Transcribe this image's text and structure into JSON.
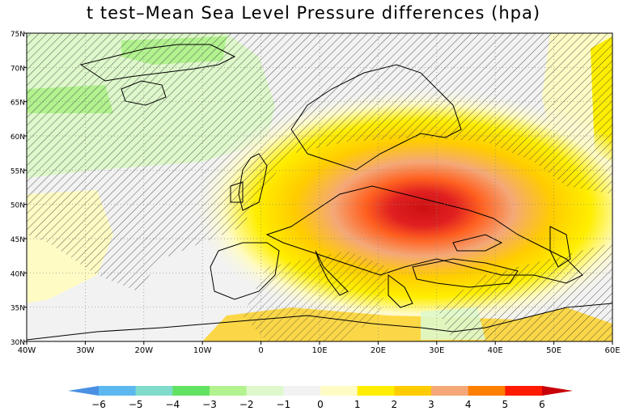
{
  "title": "t test–Mean Sea Level Pressure differences (hpa)",
  "map": {
    "projection": "lat-lon",
    "lon_range": [
      -40,
      60
    ],
    "lat_range": [
      30,
      75
    ],
    "lon_ticks": [
      "40W",
      "30W",
      "20W",
      "10W",
      "0",
      "10E",
      "20E",
      "30E",
      "40E",
      "50E",
      "60E"
    ],
    "lat_ticks": [
      "30N",
      "35N",
      "40N",
      "45N",
      "50N",
      "55N",
      "60N",
      "65N",
      "70N",
      "75N"
    ],
    "gridlines": "dotted",
    "hatching": "diagonal lines mark significance",
    "field": "mean sea level pressure difference",
    "features": [
      {
        "lon": 27,
        "lat": 46,
        "value": 5.5
      },
      {
        "lon": 22,
        "lat": 44,
        "value": 4.5
      },
      {
        "lon": -22,
        "lat": 64,
        "value": -3.2
      },
      {
        "lon": 55,
        "lat": 64,
        "value": 1.5
      }
    ]
  },
  "colorbar": {
    "labels": [
      "−6",
      "−5",
      "−4",
      "−3",
      "−2",
      "−1",
      "0",
      "1",
      "2",
      "3",
      "4",
      "5",
      "6"
    ],
    "colors": [
      "#4a90e2",
      "#5db8f0",
      "#7fdccc",
      "#62e262",
      "#b2f28f",
      "#def8cb",
      "#f2f2f2",
      "#fffbc4",
      "#ffee00",
      "#ffcc00",
      "#f4a878",
      "#ff7f00",
      "#ff1a00",
      "#c8000a"
    ]
  }
}
